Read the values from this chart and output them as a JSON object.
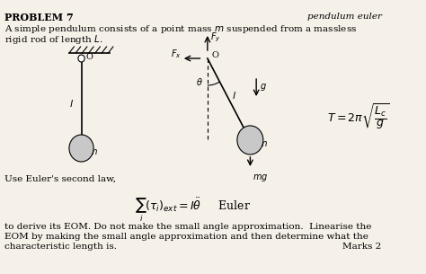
{
  "title": "PROBLEM 7",
  "title_right": "pendulum euler",
  "desc_line1": "A simple pendulum consists of a point mass $m$ suspended from a massless",
  "desc_line2": "rigid rod of length $L$.",
  "euler_law": "Use Euler's second law,",
  "equation": "$\\sum_i (\\tau_i)_{ext} = I\\ddot{\\theta}$     Euler",
  "bottom_line1": "to derive its EOM. Do not make the small angle approximation.  Linearise the",
  "bottom_line2": "EOM by making the small angle approximation and then determine what the",
  "bottom_line3": "characteristic length is.",
  "marks": "Marks 2",
  "formula": "$T = 2\\pi\\sqrt{\\dfrac{L_c}{g}}$",
  "bg_color": "#f5f0e8"
}
